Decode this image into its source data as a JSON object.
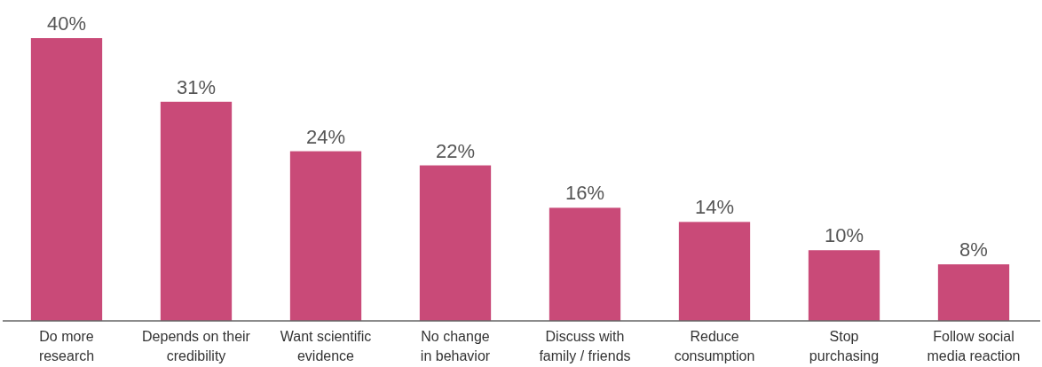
{
  "chart_data": {
    "type": "bar",
    "categories": [
      "Do more research",
      "Depends on their credibility",
      "Want scientific evidence",
      "No change in behavior",
      "Discuss with family / friends",
      "Reduce consumption",
      "Stop purchasing",
      "Follow social media reaction"
    ],
    "values": [
      40,
      31,
      24,
      22,
      16,
      14,
      10,
      8
    ],
    "value_labels": [
      "40%",
      "31%",
      "24%",
      "22%",
      "16%",
      "14%",
      "10%",
      "8%"
    ],
    "color": "#c94a78"
  }
}
